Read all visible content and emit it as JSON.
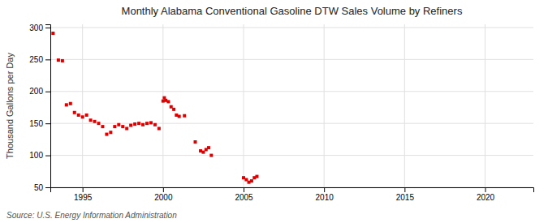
{
  "chart_data": {
    "type": "scatter",
    "title": "Monthly Alabama Conventional Gasoline DTW Sales Volume by Refiners",
    "ylabel": "Thousand Gallons per Day",
    "annotations": [
      "Source: U.S. Energy Information Administration"
    ],
    "color": "#dd0000",
    "marker": "square",
    "grid": true,
    "xlim": [
      1993.0,
      2023.0
    ],
    "ylim": [
      50,
      305
    ],
    "xticks": [
      1995,
      2000,
      2005,
      2010,
      2015,
      2020
    ],
    "yticks": [
      50,
      100,
      150,
      200,
      250,
      300
    ],
    "x": [
      1993.17,
      1993.5,
      1993.75,
      1994.0,
      1994.25,
      1994.5,
      1994.75,
      1995.0,
      1995.25,
      1995.5,
      1995.75,
      1996.0,
      1996.25,
      1996.5,
      1996.75,
      1997.0,
      1997.25,
      1997.5,
      1997.75,
      1998.0,
      1998.25,
      1998.5,
      1998.75,
      1999.0,
      1999.25,
      1999.5,
      1999.75,
      2000.0,
      2000.08,
      2000.17,
      2000.33,
      2000.5,
      2000.67,
      2000.83,
      2001.0,
      2001.33,
      2002.0,
      2002.33,
      2002.5,
      2002.67,
      2002.83,
      2003.0,
      2005.0,
      2005.17,
      2005.33,
      2005.5,
      2005.67,
      2005.83
    ],
    "values": [
      291,
      249,
      248,
      179,
      181,
      167,
      163,
      160,
      163,
      155,
      153,
      150,
      145,
      133,
      136,
      145,
      148,
      145,
      142,
      147,
      149,
      150,
      148,
      150,
      151,
      148,
      142,
      185,
      190,
      186,
      184,
      176,
      172,
      163,
      161,
      162,
      121,
      107,
      105,
      109,
      112,
      100,
      65,
      62,
      58,
      60,
      65,
      67
    ]
  }
}
